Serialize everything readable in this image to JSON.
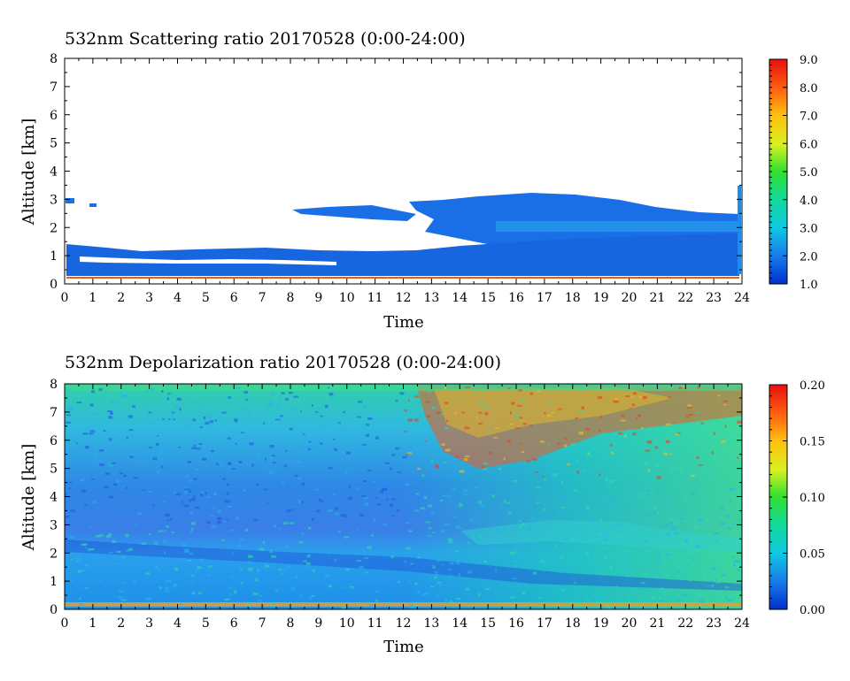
{
  "chart_data": [
    {
      "type": "heatmap",
      "title": "532nm Scattering ratio  20170528 (0:00-24:00)",
      "xlabel": "Time",
      "ylabel": "Altitude [km]",
      "xlim": [
        0,
        24
      ],
      "ylim": [
        0,
        8
      ],
      "x_ticks": [
        "0",
        "1",
        "2",
        "3",
        "4",
        "5",
        "6",
        "7",
        "8",
        "9",
        "10",
        "11",
        "12",
        "13",
        "14",
        "15",
        "16",
        "17",
        "18",
        "19",
        "20",
        "21",
        "22",
        "23",
        "24"
      ],
      "y_ticks": [
        "0",
        "1",
        "2",
        "3",
        "4",
        "5",
        "6",
        "7",
        "8"
      ],
      "colorbar": {
        "range": [
          1.0,
          9.0
        ],
        "ticks": [
          "1.0",
          "2.0",
          "3.0",
          "4.0",
          "5.0",
          "6.0",
          "7.0",
          "8.0",
          "9.0"
        ],
        "colors": [
          "#0030d0",
          "#1878e8",
          "#10c8e0",
          "#10d8a0",
          "#30e030",
          "#d8f020",
          "#ffc010",
          "#ff6010",
          "#e81010"
        ]
      },
      "features": [
        {
          "name": "boundary-layer",
          "time": [
            0,
            24
          ],
          "altitude_km": [
            0.4,
            1.4
          ],
          "value": 1.6
        },
        {
          "name": "cloud-deck",
          "time": [
            12.5,
            24
          ],
          "altitude_km": [
            1.5,
            3.2
          ],
          "value": 1.8
        },
        {
          "name": "thin-layer",
          "time": [
            8,
            12.5
          ],
          "altitude_km": [
            2.4,
            2.8
          ],
          "value": 1.7
        },
        {
          "name": "near-surface-line",
          "time": [
            0,
            24
          ],
          "altitude_km": [
            0.2,
            0.25
          ],
          "value": 8.0
        }
      ]
    },
    {
      "type": "heatmap",
      "title": "532nm Depolarization ratio  20170528 (0:00-24:00)",
      "xlabel": "Time",
      "ylabel": "Altitude [km]",
      "xlim": [
        0,
        24
      ],
      "ylim": [
        0,
        8
      ],
      "x_ticks": [
        "0",
        "1",
        "2",
        "3",
        "4",
        "5",
        "6",
        "7",
        "8",
        "9",
        "10",
        "11",
        "12",
        "13",
        "14",
        "15",
        "16",
        "17",
        "18",
        "19",
        "20",
        "21",
        "22",
        "23",
        "24"
      ],
      "y_ticks": [
        "0",
        "1",
        "2",
        "3",
        "4",
        "5",
        "6",
        "7",
        "8"
      ],
      "colorbar": {
        "range": [
          0.0,
          0.2
        ],
        "ticks": [
          "0.00",
          "0.05",
          "0.10",
          "0.15",
          "0.20"
        ],
        "colors": [
          "#0030d0",
          "#1878e8",
          "#10c8e0",
          "#10d8a0",
          "#30e030",
          "#d8f020",
          "#ffc010",
          "#ff6010",
          "#e81010"
        ]
      },
      "features": [
        {
          "name": "low-layer",
          "time": [
            0,
            24
          ],
          "altitude_km": [
            0,
            2.5
          ],
          "value": 0.04
        },
        {
          "name": "upper-noisy",
          "time": [
            12,
            24
          ],
          "altitude_km": [
            5,
            8
          ],
          "value": 0.15
        },
        {
          "name": "upper-clear",
          "time": [
            0,
            12
          ],
          "altitude_km": [
            3,
            8
          ],
          "value": 0.05
        }
      ]
    }
  ]
}
